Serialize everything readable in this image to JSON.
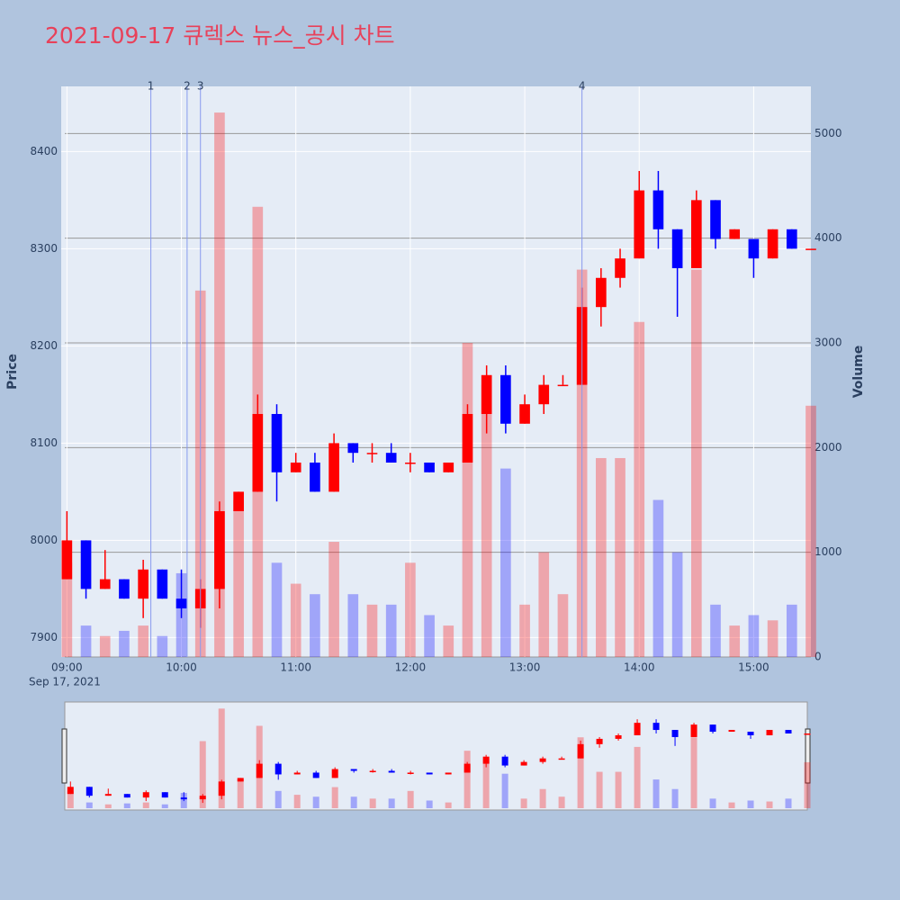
{
  "chart_data": {
    "type": "candlestick",
    "title": "2021-09-17 큐렉스 뉴스_공시 차트",
    "x": [
      "09:00",
      "09:10",
      "09:20",
      "09:30",
      "09:40",
      "09:50",
      "10:00",
      "10:10",
      "10:20",
      "10:30",
      "10:40",
      "10:50",
      "11:00",
      "11:10",
      "11:20",
      "11:30",
      "11:40",
      "11:50",
      "12:00",
      "12:10",
      "12:20",
      "12:30",
      "12:40",
      "12:50",
      "13:00",
      "13:10",
      "13:20",
      "13:30",
      "13:40",
      "13:50",
      "14:00",
      "14:10",
      "14:20",
      "14:30",
      "14:40",
      "14:50",
      "15:00",
      "15:10",
      "15:20",
      "15:30"
    ],
    "open": [
      7960,
      8000,
      7950,
      7960,
      7940,
      7970,
      7940,
      7930,
      7950,
      8030,
      8050,
      8130,
      8070,
      8080,
      8050,
      8100,
      8090,
      8090,
      8080,
      8080,
      8070,
      8080,
      8130,
      8170,
      8120,
      8140,
      8160,
      8160,
      8240,
      8270,
      8290,
      8360,
      8320,
      8280,
      8350,
      8310,
      8310,
      8290,
      8320,
      8300
    ],
    "high": [
      8030,
      8000,
      7990,
      7960,
      7980,
      7970,
      7970,
      7960,
      8040,
      8050,
      8150,
      8140,
      8090,
      8090,
      8110,
      8100,
      8100,
      8100,
      8090,
      8080,
      8080,
      8140,
      8180,
      8180,
      8150,
      8170,
      8170,
      8260,
      8280,
      8300,
      8380,
      8380,
      8320,
      8360,
      8350,
      8320,
      8310,
      8320,
      8320,
      8300
    ],
    "low": [
      7960,
      7940,
      7950,
      7940,
      7920,
      7940,
      7920,
      7910,
      7930,
      8030,
      8050,
      8040,
      8070,
      8050,
      8050,
      8080,
      8080,
      8080,
      8070,
      8070,
      8070,
      8080,
      8110,
      8110,
      8120,
      8130,
      8160,
      8160,
      8220,
      8260,
      8290,
      8300,
      8230,
      8280,
      8300,
      8310,
      8270,
      8290,
      8300,
      8300
    ],
    "close": [
      8000,
      7950,
      7960,
      7940,
      7970,
      7940,
      7930,
      7950,
      8030,
      8050,
      8130,
      8070,
      8080,
      8050,
      8100,
      8090,
      8090,
      8080,
      8080,
      8070,
      8080,
      8130,
      8170,
      8120,
      8140,
      8160,
      8160,
      8240,
      8270,
      8290,
      8360,
      8320,
      8280,
      8350,
      8310,
      8320,
      8290,
      8320,
      8300,
      8300
    ],
    "volume": [
      900,
      300,
      200,
      250,
      300,
      200,
      800,
      3500,
      5200,
      1500,
      4300,
      900,
      700,
      600,
      1100,
      600,
      500,
      500,
      900,
      400,
      300,
      3000,
      2600,
      1800,
      500,
      1000,
      600,
      3700,
      1900,
      1900,
      3200,
      1500,
      1000,
      3700,
      500,
      300,
      400,
      350,
      500,
      2400
    ],
    "up_color": "#ff0000",
    "down_color": "#0000ff",
    "xlim": [
      "08:57",
      "15:30"
    ],
    "xticks": [
      "09:00",
      "10:00",
      "11:00",
      "12:00",
      "13:00",
      "14:00",
      "15:00"
    ],
    "x_sublabel": "Sep 17, 2021",
    "ylim": [
      7880,
      8467
    ],
    "yticks": [
      7900,
      8000,
      8100,
      8200,
      8300,
      8400
    ],
    "y2lim": [
      0,
      5450
    ],
    "y2ticks": [
      0,
      1000,
      2000,
      3000,
      4000,
      5000
    ],
    "ylabel": "Price",
    "y2label": "Volume",
    "grid": true,
    "events": [
      {
        "x": "09:44",
        "label": "1"
      },
      {
        "x": "10:03",
        "label": "2"
      },
      {
        "x": "10:10",
        "label": "3"
      },
      {
        "x": "13:30",
        "label": "4"
      }
    ]
  }
}
